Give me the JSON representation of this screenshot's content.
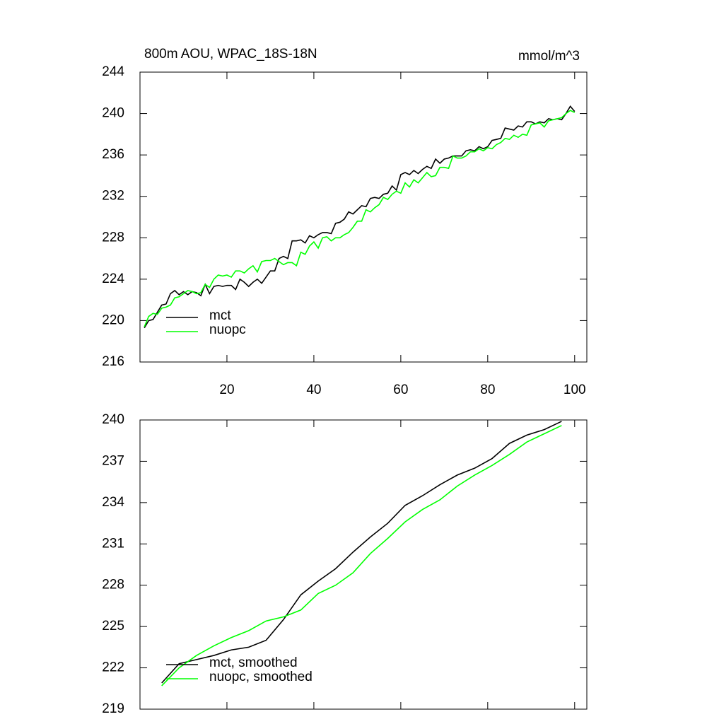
{
  "chart_data": [
    {
      "type": "line",
      "title": "800m AOU, WPAC_18S-18N",
      "units_label": "mmol/m^3",
      "x": [
        1,
        2,
        3,
        4,
        5,
        6,
        7,
        8,
        9,
        10,
        11,
        12,
        13,
        14,
        15,
        16,
        17,
        18,
        19,
        20,
        21,
        22,
        23,
        24,
        25,
        26,
        27,
        28,
        29,
        30,
        31,
        32,
        33,
        34,
        35,
        36,
        37,
        38,
        39,
        40,
        41,
        42,
        43,
        44,
        45,
        46,
        47,
        48,
        49,
        50,
        51,
        52,
        53,
        54,
        55,
        56,
        57,
        58,
        59,
        60,
        61,
        62,
        63,
        64,
        65,
        66,
        67,
        68,
        69,
        70,
        71,
        72,
        73,
        74,
        75,
        76,
        77,
        78,
        79,
        80,
        81,
        82,
        83,
        84,
        85,
        86,
        87,
        88,
        89,
        90,
        91,
        92,
        93,
        94,
        95,
        96,
        97,
        98,
        99,
        100
      ],
      "series": [
        {
          "name": "mct",
          "color": "#000000",
          "values": [
            219.3,
            220.0,
            220.1,
            220.8,
            221.5,
            221.6,
            222.6,
            222.9,
            222.5,
            222.8,
            222.5,
            222.8,
            222.7,
            222.4,
            223.5,
            222.6,
            223.3,
            223.4,
            223.3,
            223.4,
            223.4,
            223.0,
            224.0,
            223.7,
            223.3,
            223.7,
            224.0,
            223.6,
            224.2,
            224.8,
            224.8,
            226.0,
            226.2,
            226.0,
            227.7,
            227.7,
            227.8,
            227.5,
            228.2,
            228.0,
            228.3,
            228.5,
            228.5,
            228.4,
            229.4,
            229.5,
            229.8,
            230.5,
            230.3,
            230.7,
            231.1,
            231.0,
            231.8,
            231.9,
            231.8,
            232.2,
            232.3,
            233.0,
            232.6,
            234.1,
            234.3,
            234.1,
            234.5,
            234.2,
            234.6,
            234.9,
            234.7,
            235.6,
            235.2,
            235.6,
            235.7,
            235.9,
            235.9,
            235.9,
            236.4,
            236.5,
            236.4,
            236.8,
            236.6,
            236.8,
            237.4,
            237.5,
            237.6,
            238.6,
            238.5,
            238.4,
            238.8,
            238.7,
            239.2,
            239.2,
            239.0,
            239.2,
            239.1,
            239.5,
            239.4,
            239.5,
            239.4,
            240.0,
            240.7,
            240.2
          ]
        },
        {
          "name": "nuopc",
          "color": "#00ff00",
          "values": [
            219.4,
            220.4,
            220.7,
            220.6,
            221.2,
            221.3,
            221.5,
            222.2,
            222.3,
            222.6,
            222.9,
            222.8,
            222.6,
            222.7,
            223.5,
            223.2,
            224.0,
            224.4,
            224.3,
            224.4,
            224.2,
            224.8,
            224.8,
            224.6,
            225.0,
            225.3,
            224.7,
            225.7,
            225.8,
            225.8,
            226.0,
            225.7,
            225.4,
            225.6,
            225.6,
            225.3,
            226.6,
            226.4,
            227.2,
            227.6,
            227.0,
            228.0,
            228.1,
            227.7,
            228.0,
            228.0,
            228.3,
            228.5,
            229.0,
            229.6,
            229.6,
            230.7,
            230.5,
            230.9,
            231.2,
            231.9,
            231.7,
            232.2,
            232.5,
            232.3,
            233.3,
            232.9,
            233.6,
            233.3,
            233.8,
            234.3,
            233.9,
            234.0,
            234.8,
            234.8,
            234.7,
            235.9,
            235.7,
            235.7,
            235.9,
            236.3,
            236.3,
            236.6,
            236.4,
            236.7,
            236.6,
            237.0,
            237.2,
            237.6,
            237.5,
            237.9,
            237.7,
            238.0,
            237.9,
            238.9,
            239.0,
            239.1,
            238.7,
            239.3,
            239.4,
            239.5,
            239.6,
            240.0,
            240.3,
            240.1
          ]
        }
      ],
      "xlim": [
        0,
        102.8
      ],
      "xticks": [
        20,
        40,
        60,
        80,
        100
      ],
      "xtick_labels": true,
      "ylim": [
        216,
        244
      ],
      "yticks": [
        216,
        220,
        224,
        228,
        232,
        236,
        240,
        244
      ],
      "legend": "lower left"
    },
    {
      "type": "line",
      "x": [
        5,
        9,
        13,
        17,
        21,
        25,
        29,
        33,
        37,
        41,
        45,
        49,
        53,
        57,
        61,
        65,
        69,
        73,
        77,
        81,
        85,
        89,
        93,
        97
      ],
      "series": [
        {
          "name": "mct, smoothed",
          "color": "#000000",
          "values": [
            220.9,
            222.3,
            222.6,
            222.9,
            223.3,
            223.5,
            224.0,
            225.5,
            227.3,
            228.3,
            229.2,
            230.4,
            231.5,
            232.5,
            233.8,
            234.5,
            235.3,
            236.0,
            236.5,
            237.2,
            238.3,
            238.9,
            239.3,
            239.9
          ]
        },
        {
          "name": "nuopc, smoothed",
          "color": "#00ff00",
          "values": [
            220.7,
            222.0,
            222.9,
            223.6,
            224.2,
            224.7,
            225.4,
            225.7,
            226.2,
            227.4,
            228.0,
            228.9,
            230.3,
            231.4,
            232.6,
            233.5,
            234.2,
            235.2,
            236.0,
            236.7,
            237.5,
            238.4,
            239.0,
            239.6
          ]
        }
      ],
      "xlim": [
        0,
        102.8
      ],
      "xticks": [
        20,
        40,
        60,
        80,
        100
      ],
      "xtick_labels": false,
      "ylim": [
        219,
        240
      ],
      "yticks": [
        219,
        222,
        225,
        228,
        231,
        234,
        237,
        240
      ],
      "legend": "lower left"
    }
  ]
}
